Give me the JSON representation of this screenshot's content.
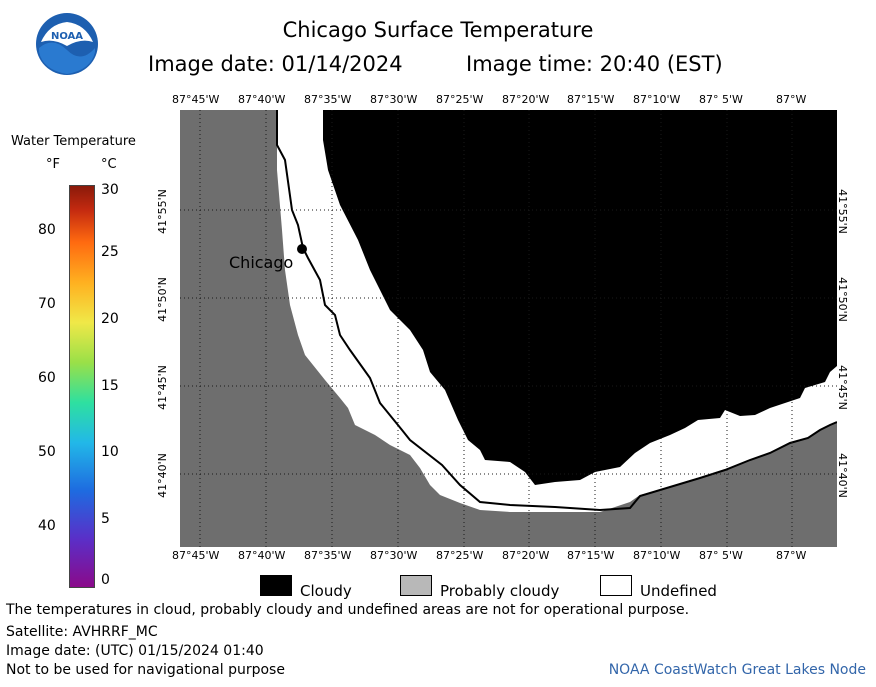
{
  "header": {
    "title": "Chicago Surface Temperature",
    "date_line": "Image date: 01/14/2024",
    "time_line": "Image time: 20:40 (EST)"
  },
  "logo": {
    "text": "NOAA"
  },
  "colors": {
    "land": "#6e6e6e",
    "cloudy": "#000000",
    "undefined": "#ffffff",
    "probably_cloudy": "#b8b8b8",
    "grid": "#1a1a1a",
    "credit": "#3366aa"
  },
  "map": {
    "lon_labels": [
      "87°45'W",
      "87°40'W",
      "87°35'W",
      "87°30'W",
      "87°25'W",
      "87°20'W",
      "87°15'W",
      "87°10'W",
      "87° 5'W",
      "87°W"
    ],
    "lat_labels": [
      "41°55'N",
      "41°50'N",
      "41°45'N",
      "41°40'N"
    ],
    "city": {
      "label": "Chicago"
    }
  },
  "color_scale": {
    "title": "Water Temperature",
    "unit_f": "°F",
    "unit_c": "°C",
    "f_ticks": [
      "80",
      "70",
      "60",
      "50",
      "40"
    ],
    "c_ticks": [
      "30",
      "25",
      "20",
      "15",
      "10",
      "5",
      "0"
    ]
  },
  "categories": {
    "cloudy": "Cloudy",
    "probably_cloudy": "Probably cloudy",
    "undefined": "Undefined"
  },
  "footer": {
    "note": "The temperatures in cloud, probably cloudy and undefined areas are not for operational purpose.",
    "satellite": "Satellite: AVHRRF_MC",
    "utc_date": "Image date: (UTC) 01/15/2024  01:40",
    "nav_warning": "Not to be used for navigational purpose",
    "credit": "NOAA CoastWatch Great Lakes Node"
  }
}
